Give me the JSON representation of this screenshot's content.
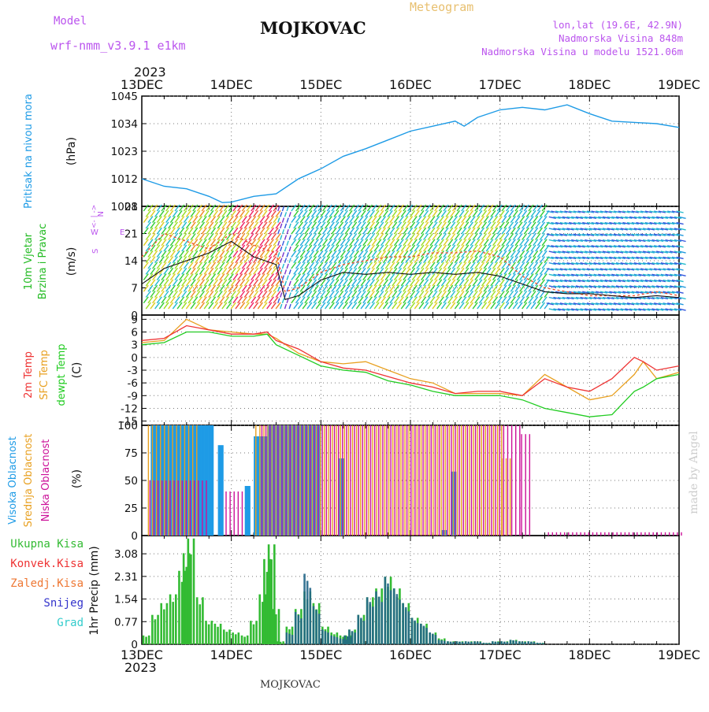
{
  "header": {
    "model_label": "Model",
    "model_name": "wrf-nmm_v3.9.1 e1km",
    "title": "MOJKOVAC",
    "subtitle": "Meteogram",
    "coords": "lon,lat (19.6E, 42.9N)",
    "elevation": "Nadmorska Visina 848m",
    "model_elevation": "Nadmorska Visina u modelu 1521.06m",
    "year": "2023",
    "footer": "MOJKOVAC",
    "watermark": "made by Angel"
  },
  "colors": {
    "pressure": "#1e9be6",
    "wind_label": "#22bb22",
    "wind_purple": "#bb55ee",
    "temp2m": "#ee3333",
    "sfc_temp": "#e8a020",
    "dewpoint": "#22cc22",
    "high_cloud": "#1e9be6",
    "mid_cloud": "#e8a020",
    "low_cloud": "#cc1199",
    "total_precip": "#33bb33",
    "conv_precip": "#ee3333",
    "freezing_precip": "#ee7733",
    "snow": "#3333cc",
    "hail": "#33cccc",
    "watermark": "#cccccc"
  },
  "chart_data": [
    {
      "type": "line",
      "panel": "pressure",
      "ylabel_main": "Pritisak na nivou mora",
      "ylabel_unit": "(hPa)",
      "x_ticks": [
        "13DEC",
        "14DEC",
        "15DEC",
        "16DEC",
        "17DEC",
        "18DEC",
        "19DEC"
      ],
      "yticks": [
        1001,
        1012,
        1023,
        1034,
        1045
      ],
      "ylim": [
        1001,
        1045
      ],
      "x_days": [
        0,
        0.25,
        0.5,
        0.75,
        0.9,
        1.0,
        1.25,
        1.5,
        1.75,
        2.0,
        2.25,
        2.5,
        2.75,
        3.0,
        3.25,
        3.5,
        3.6,
        3.75,
        4.0,
        4.25,
        4.5,
        4.75,
        5.0,
        5.25,
        5.5,
        5.75,
        6.0
      ],
      "series": [
        {
          "values": [
            1012,
            1009,
            1008,
            1005,
            1002.5,
            1002.7,
            1005,
            1006,
            1012,
            1016,
            1021,
            1024,
            1027.5,
            1031,
            1033,
            1035,
            1033,
            1036.5,
            1039.5,
            1040.5,
            1039.5,
            1041.5,
            1038,
            1035,
            1034.5,
            1034,
            1032.5
          ]
        }
      ],
      "grid": true
    },
    {
      "type": "line",
      "panel": "wind",
      "ylabel_main": "10m Vjetar",
      "ylabel_main2": "Brzina i Pravac",
      "ylabel_unit": "(m/s)",
      "compass": [
        "N",
        "E",
        "S",
        "W"
      ],
      "yticks": [
        0,
        7,
        14,
        21,
        28
      ],
      "ylim": [
        0,
        28
      ],
      "x_days": [
        0,
        0.25,
        0.5,
        0.75,
        1.0,
        1.25,
        1.5,
        1.6,
        1.75,
        2.0,
        2.25,
        2.5,
        2.75,
        3.0,
        3.25,
        3.5,
        3.75,
        4.0,
        4.25,
        4.5,
        4.75,
        5.0,
        5.25,
        5.5,
        5.75,
        6.0
      ],
      "series": [
        {
          "values": [
            8,
            12,
            14,
            16,
            19,
            15,
            13,
            4,
            5,
            9,
            11,
            10.5,
            11,
            10.5,
            11,
            10.5,
            11,
            10,
            8,
            6,
            5.5,
            5.5,
            5,
            4.5,
            5,
            4.5
          ]
        },
        {
          "values": [
            15,
            21,
            19,
            17,
            21,
            18,
            16,
            6,
            7,
            11,
            13,
            14,
            15,
            15,
            16,
            16,
            16.5,
            15,
            10,
            7,
            6,
            5,
            5,
            5,
            6,
            5
          ]
        }
      ],
      "grid": true
    },
    {
      "type": "line",
      "panel": "temperature",
      "ylabel_main": "2m Temp",
      "ylabel_main2": "SFC Temp",
      "ylabel_main3": "dewpt Temp",
      "ylabel_unit": "(C)",
      "yticks": [
        9,
        6,
        3,
        0,
        -3,
        -6,
        -9,
        -12,
        -15
      ],
      "ylim": [
        -16,
        10
      ],
      "x_days": [
        0,
        0.25,
        0.5,
        0.75,
        1.0,
        1.25,
        1.4,
        1.5,
        1.75,
        2.0,
        2.25,
        2.5,
        2.75,
        3.0,
        3.25,
        3.5,
        3.75,
        4.0,
        4.25,
        4.5,
        4.75,
        5.0,
        5.25,
        5.5,
        5.6,
        5.75,
        6.0
      ],
      "series": [
        {
          "values": [
            4,
            4.5,
            7.5,
            6.5,
            5.5,
            5.5,
            6,
            4,
            2,
            -1,
            -2.5,
            -3,
            -4.5,
            -6,
            -7,
            -8.5,
            -8,
            -8,
            -9,
            -5,
            -7,
            -8,
            -5,
            0,
            -1,
            -3,
            -2
          ]
        },
        {
          "values": [
            3.5,
            4,
            9,
            6.5,
            6,
            5.5,
            5.5,
            4.5,
            1,
            -1,
            -1.5,
            -1,
            -3,
            -5,
            -6,
            -8.5,
            -8.5,
            -8.5,
            -9,
            -4,
            -7,
            -10,
            -9,
            -4,
            -1,
            -5,
            -3.5
          ]
        },
        {
          "values": [
            3,
            3.5,
            6,
            6,
            5,
            5,
            5.5,
            3,
            0.5,
            -2,
            -3,
            -3.5,
            -5.5,
            -6.5,
            -8,
            -9,
            -9,
            -9,
            -10,
            -12,
            -13,
            -14,
            -13.5,
            -8,
            -7,
            -5,
            -4
          ]
        }
      ],
      "grid": true
    },
    {
      "type": "bar",
      "panel": "cloud",
      "ylabel_main": "Visoka Oblacnost",
      "ylabel_main2": "Srednja Oblacnost",
      "ylabel_main3": "Niska Oblacnost",
      "ylabel_unit": "(%)",
      "yticks": [
        0,
        25,
        50,
        75,
        100
      ],
      "ylim": [
        0,
        100
      ],
      "series": [
        {
          "name": "high",
          "segments": [
            [
              0.1,
              0.8,
              100
            ],
            [
              0.85,
              0.9,
              82
            ],
            [
              1.15,
              1.2,
              45
            ],
            [
              1.25,
              1.4,
              90
            ],
            [
              1.4,
              2.0,
              100
            ],
            [
              2.2,
              2.25,
              70
            ],
            [
              3.45,
              3.5,
              58
            ],
            [
              3.35,
              3.4,
              5
            ]
          ]
        },
        {
          "name": "mid",
          "segments": [
            [
              0.05,
              0.6,
              100
            ],
            [
              1.25,
              4.0,
              100
            ],
            [
              4.0,
              4.1,
              70
            ]
          ]
        },
        {
          "name": "low",
          "segments": [
            [
              0.05,
              0.7,
              50
            ],
            [
              0.9,
              1.1,
              40
            ],
            [
              1.3,
              4.2,
              100
            ],
            [
              4.2,
              4.3,
              92
            ],
            [
              4.5,
              6.0,
              3
            ]
          ]
        }
      ],
      "grid": true
    },
    {
      "type": "bar",
      "panel": "precipitation",
      "ylabel_main": "1hr Precip",
      "ylabel_unit": "(mm)",
      "legend": [
        "Ukupna Kisa",
        "Konvek.Kisa",
        "Zaledj.Kisa",
        "Snijeg",
        "Grad"
      ],
      "yticks": [
        0,
        0.77,
        1.54,
        2.31,
        3.08
      ],
      "ylim": [
        0,
        3.7
      ],
      "x_days": [
        0.05,
        0.15,
        0.25,
        0.35,
        0.45,
        0.5,
        0.55,
        0.65,
        0.75,
        0.85,
        0.95,
        1.05,
        1.15,
        1.25,
        1.35,
        1.4,
        1.45,
        1.5,
        1.55,
        1.65,
        1.75,
        1.85,
        1.95,
        2.05,
        2.15,
        2.25,
        2.3,
        2.35,
        2.45,
        2.55,
        2.65,
        2.75,
        2.85,
        2.95,
        3.05,
        3.15,
        3.25,
        3.35,
        3.45,
        3.55,
        3.65,
        3.75,
        3.85,
        3.95,
        4.05,
        4.15,
        4.25,
        4.35,
        4.45,
        4.55,
        4.65,
        4.75,
        4.85,
        4.95,
        5.05,
        5.15,
        5.25,
        5.35,
        5.45,
        5.55,
        5.65,
        5.75,
        5.85,
        5.95
      ],
      "series": [
        {
          "name": "Ukupna Kisa",
          "values": [
            0.3,
            1.0,
            1.4,
            1.7,
            2.5,
            3.1,
            3.6,
            1.6,
            0.8,
            0.7,
            0.5,
            0.4,
            0.3,
            0.8,
            1.7,
            2.9,
            3.4,
            1.2,
            0.1,
            0.6,
            1.2,
            1.8,
            1.4,
            0.6,
            0.4,
            0.3,
            0.3,
            0.5,
            1.0,
            1.6,
            1.9,
            2.3,
            1.9,
            1.4,
            0.9,
            0.7,
            0.4,
            0.2,
            0.1,
            0.1,
            0.1,
            0.1,
            0.05,
            0.1,
            0.1,
            0.15,
            0.1,
            0.1,
            0.05,
            0.0,
            0.0,
            0.0,
            0.0,
            0.0,
            0.0,
            0.0,
            0.0,
            0.0,
            0.0,
            0.0,
            0.0,
            0.0,
            0.0,
            0.0
          ]
        },
        {
          "name": "Snijeg",
          "values": [
            0,
            0,
            0,
            0,
            0,
            0,
            0,
            0,
            0,
            0,
            0,
            0,
            0,
            0,
            0,
            0,
            0,
            0,
            0,
            0.4,
            1.1,
            2.4,
            1.3,
            0.5,
            0.3,
            0.2,
            0.3,
            0.5,
            1.0,
            1.6,
            1.8,
            2.3,
            1.9,
            1.4,
            0.9,
            0.7,
            0.4,
            0.15,
            0.1,
            0.1,
            0.1,
            0.1,
            0.05,
            0.1,
            0.1,
            0.15,
            0.1,
            0.1,
            0.05,
            0,
            0,
            0,
            0,
            0,
            0,
            0,
            0,
            0,
            0,
            0,
            0,
            0,
            0,
            0
          ]
        }
      ],
      "grid": true
    }
  ]
}
